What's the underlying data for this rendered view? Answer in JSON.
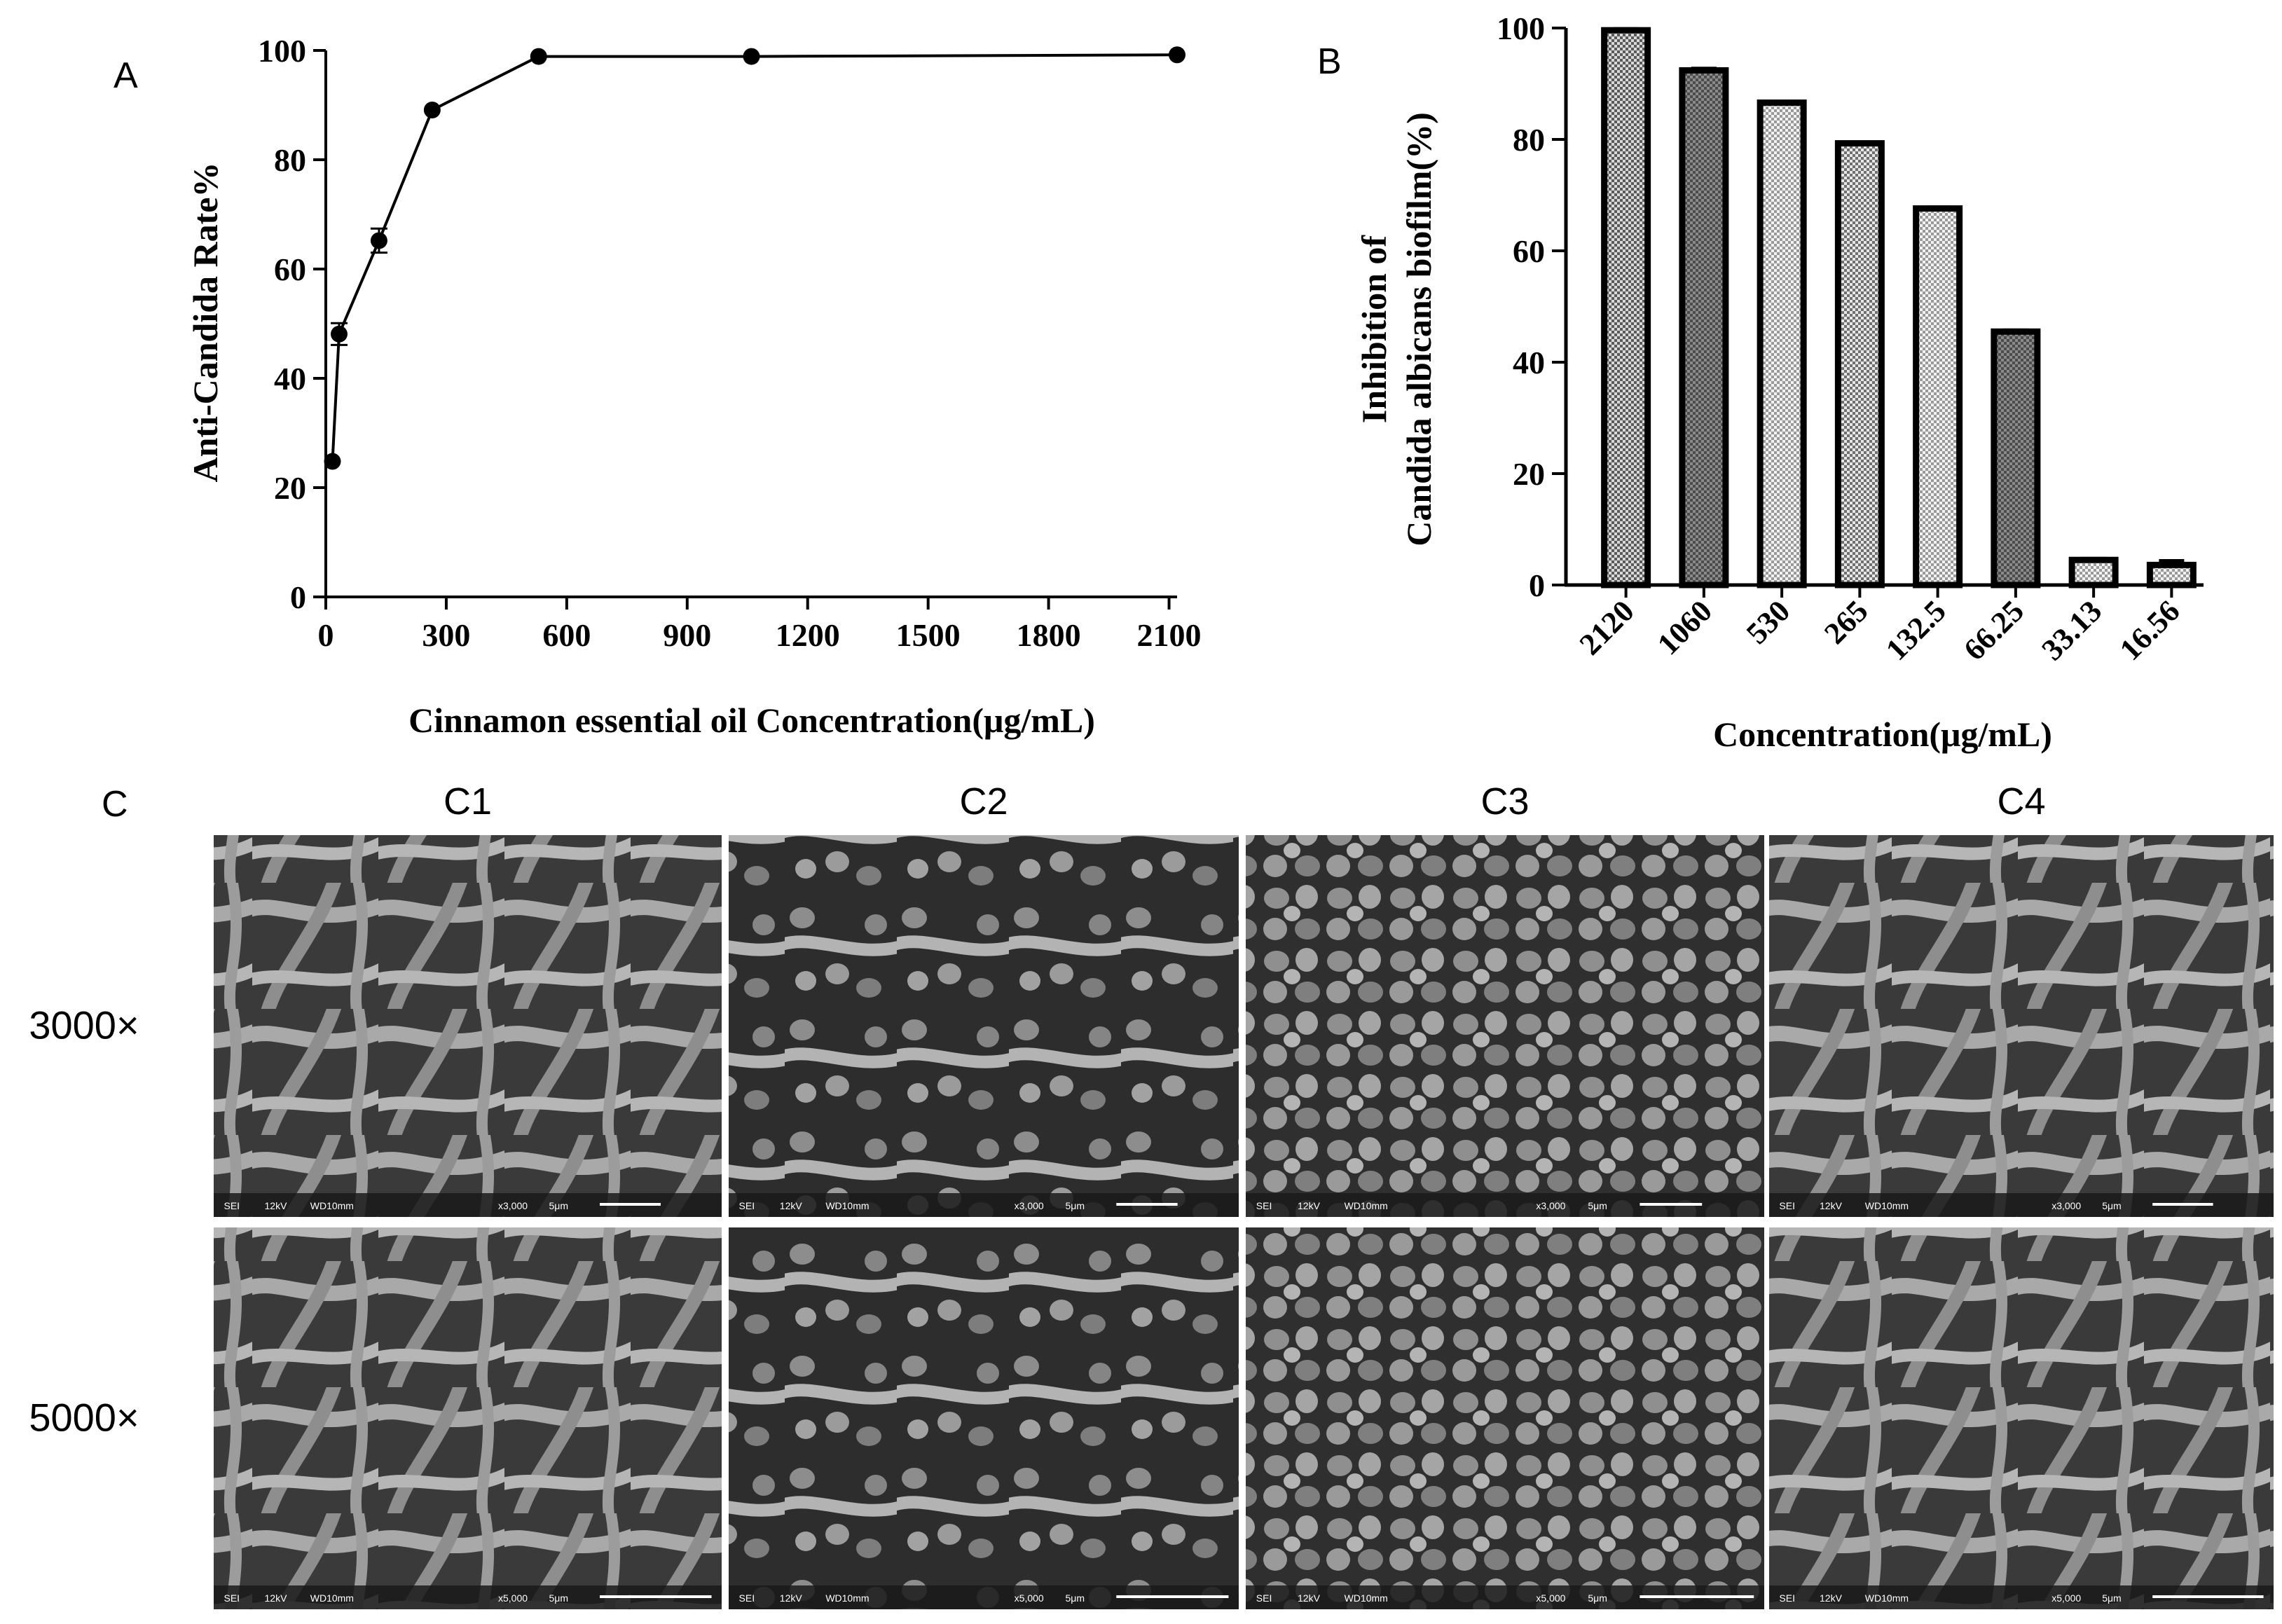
{
  "panel_labels": {
    "a": "A",
    "b": "B",
    "c": "C"
  },
  "chart_data": [
    {
      "type": "line",
      "xlabel": "Cinnamon essential oil Concentration(μg/mL)",
      "ylabel": "Anti-Candida Rate%",
      "xlim": [
        0,
        2120
      ],
      "ylim": [
        0,
        100
      ],
      "x_ticks": [
        0,
        300,
        600,
        900,
        1200,
        1500,
        1800,
        2100
      ],
      "y_ticks": [
        0,
        20,
        40,
        60,
        80,
        100
      ],
      "grid": false,
      "series": [
        {
          "x": [
            16.56,
            33.13,
            132.5,
            265,
            530,
            1060,
            2120
          ],
          "y": [
            24.8,
            48.1,
            65.2,
            89.1,
            98.9,
            98.9,
            99.2
          ],
          "err": [
            0.5,
            2.0,
            2.2,
            0.5,
            0.4,
            0.4,
            0.3
          ]
        }
      ],
      "color": "#000000"
    },
    {
      "type": "bar",
      "xlabel": "Concentration(μg/mL)",
      "ylabel_lines": [
        "Inhibition of",
        "Candida albicans biofilm(%)"
      ],
      "categories": [
        "2120",
        "1060",
        "530",
        "265",
        "132.5",
        "66.25",
        "33.13",
        "16.56"
      ],
      "values": [
        99.6,
        92.4,
        86.6,
        79.3,
        67.6,
        45.5,
        4.5,
        3.6
      ],
      "err": [
        0.3,
        0.4,
        0.2,
        0.2,
        0.3,
        0.3,
        0.3,
        0.8
      ],
      "ylim": [
        0,
        100
      ],
      "y_ticks": [
        0,
        20,
        40,
        60,
        80,
        100
      ],
      "grid": false,
      "fill_patterns": [
        "dark-check",
        "dark-grey",
        "light-check",
        "medium-check",
        "light-check",
        "dark-grey",
        "light-check",
        "light-check"
      ]
    }
  ],
  "micrographs": {
    "columns": [
      "C1",
      "C2",
      "C3",
      "C4"
    ],
    "rows": [
      "3000×",
      "5000×"
    ],
    "info_bars": [
      [
        "SEI",
        "12kV",
        "WD10mm",
        "x3,000",
        "5μm"
      ],
      [
        "SEI",
        "12kV",
        "WD10mm",
        "x5,000",
        "5μm"
      ]
    ]
  }
}
